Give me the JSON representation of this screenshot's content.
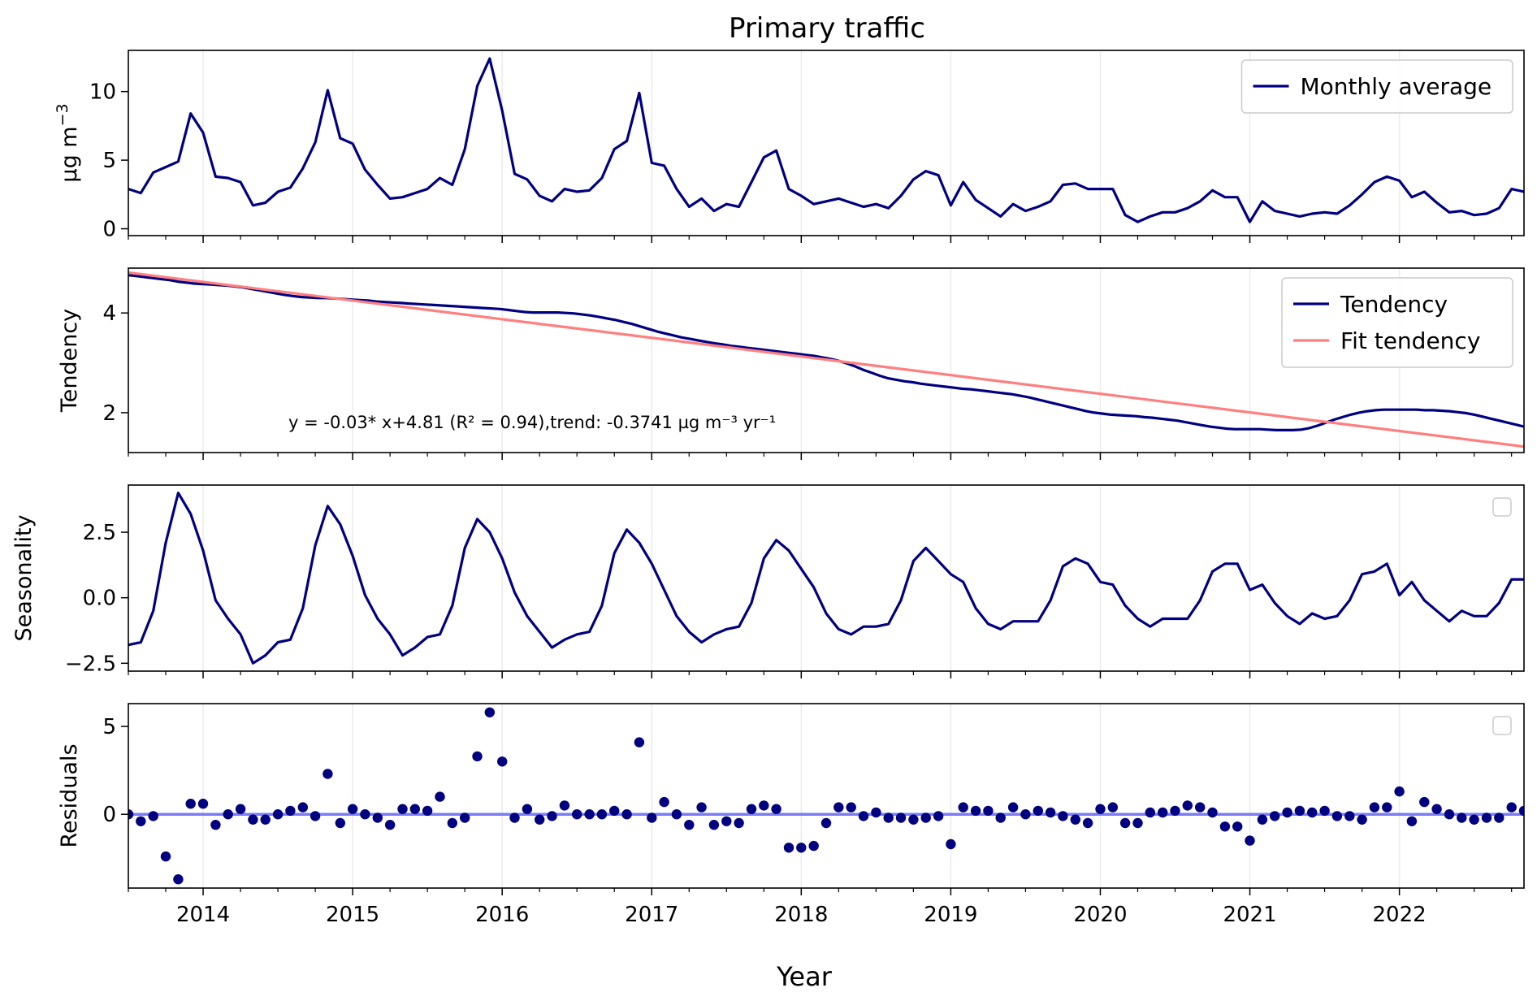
{
  "chart_data": {
    "type": "line",
    "title": "Primary traffic",
    "xlabel": "Year",
    "x_start": "2013-07",
    "xlim": [
      "2013-07",
      "2022-11"
    ],
    "x_ticks": [
      "2014",
      "2015",
      "2016",
      "2017",
      "2018",
      "2019",
      "2020",
      "2021",
      "2022"
    ],
    "panels": [
      {
        "id": "monthly",
        "ylabel": "µg m",
        "ylabel_sup": "−3",
        "ylim": [
          -0.5,
          13
        ],
        "y_ticks": [
          "0",
          "5",
          "10"
        ],
        "legend": "top-right",
        "series": [
          {
            "name": "Monthly average",
            "color": "#000080",
            "values": [
              2.9,
              2.6,
              4.1,
              4.5,
              4.9,
              8.4,
              7.0,
              3.8,
              3.7,
              3.4,
              1.7,
              1.9,
              2.7,
              3.0,
              4.4,
              6.3,
              10.1,
              6.6,
              6.2,
              4.3,
              3.2,
              2.2,
              2.3,
              2.6,
              2.9,
              3.7,
              3.2,
              5.8,
              10.4,
              12.4,
              8.6,
              4.0,
              3.6,
              2.4,
              2.0,
              2.9,
              2.7,
              2.8,
              3.7,
              5.8,
              6.4,
              9.9,
              4.8,
              4.6,
              2.9,
              1.6,
              2.2,
              1.3,
              1.8,
              1.6,
              3.4,
              5.2,
              5.7,
              2.9,
              2.4,
              1.8,
              2.0,
              2.2,
              1.9,
              1.6,
              1.8,
              1.5,
              2.4,
              3.6,
              4.2,
              3.9,
              1.7,
              3.4,
              2.1,
              1.5,
              0.9,
              1.8,
              1.3,
              1.6,
              2.0,
              3.2,
              3.3,
              2.9,
              2.9,
              2.9,
              1.0,
              0.5,
              0.9,
              1.2,
              1.2,
              1.5,
              2.0,
              2.8,
              2.3,
              2.3,
              0.5,
              2.0,
              1.3,
              1.1,
              0.9,
              1.1,
              1.2,
              1.1,
              1.7,
              2.5,
              3.4,
              3.8,
              3.5,
              2.3,
              2.7,
              1.9,
              1.2,
              1.3,
              1.0,
              1.1,
              1.5,
              2.9,
              2.7
            ]
          }
        ]
      },
      {
        "id": "tendency",
        "ylabel": "Tendency",
        "ylim": [
          1.2,
          4.9
        ],
        "y_ticks": [
          "2",
          "4"
        ],
        "legend": "top-right",
        "annotation": "y = -0.03* x+4.81 (R² = 0.94),trend: -0.3741 µg m⁻³ yr⁻¹",
        "series": [
          {
            "name": "Tendency",
            "color": "#000080",
            "values": [
              4.76,
              4.74,
              4.72,
              4.7,
              4.68,
              4.66,
              4.63,
              4.61,
              4.59,
              4.58,
              4.57,
              4.56,
              4.55,
              4.53,
              4.51,
              4.48,
              4.45,
              4.42,
              4.39,
              4.36,
              4.34,
              4.32,
              4.31,
              4.3,
              4.3,
              4.29,
              4.28,
              4.27,
              4.26,
              4.25,
              4.23,
              4.22,
              4.21,
              4.2,
              4.19,
              4.18,
              4.17,
              4.16,
              4.15,
              4.14,
              4.13,
              4.12,
              4.11,
              4.1,
              4.09,
              4.08,
              4.06,
              4.04,
              4.02,
              4.01,
              4.01,
              4.01,
              4.01,
              4.0,
              3.99,
              3.97,
              3.95,
              3.92,
              3.89,
              3.86,
              3.82,
              3.78,
              3.73,
              3.68,
              3.63,
              3.59,
              3.55,
              3.51,
              3.48,
              3.45,
              3.42,
              3.39,
              3.37,
              3.34,
              3.32,
              3.3,
              3.28,
              3.26,
              3.24,
              3.22,
              3.2,
              3.18,
              3.16,
              3.14,
              3.11,
              3.08,
              3.04,
              2.99,
              2.93,
              2.86,
              2.8,
              2.74,
              2.69,
              2.66,
              2.63,
              2.61,
              2.58,
              2.56,
              2.54,
              2.52,
              2.5,
              2.48,
              2.47,
              2.45,
              2.43,
              2.41,
              2.39,
              2.37,
              2.34,
              2.31,
              2.27,
              2.23,
              2.19,
              2.15,
              2.11,
              2.07,
              2.03,
              2.0,
              1.98,
              1.96,
              1.95,
              1.94,
              1.93,
              1.91,
              1.9,
              1.88,
              1.86,
              1.84,
              1.81,
              1.78,
              1.75,
              1.72,
              1.7,
              1.68,
              1.67,
              1.67,
              1.67,
              1.67,
              1.66,
              1.65,
              1.65,
              1.65,
              1.66,
              1.69,
              1.74,
              1.8,
              1.86,
              1.91,
              1.96,
              2.0,
              2.03,
              2.05,
              2.06,
              2.06,
              2.06,
              2.06,
              2.06,
              2.05,
              2.05,
              2.04,
              2.03,
              2.01,
              1.99,
              1.96,
              1.92,
              1.88,
              1.84,
              1.8,
              1.76,
              1.72
            ]
          },
          {
            "name": "Fit tendency",
            "color": "#ff7f7f",
            "start": 4.81,
            "end": 1.32
          }
        ]
      },
      {
        "id": "seasonality",
        "ylabel": "Seasonality",
        "ylim": [
          -2.8,
          4.3
        ],
        "y_ticks": [
          "−2.5",
          "0.0",
          "2.5"
        ],
        "legend": "top-right-empty",
        "series": [
          {
            "name": "",
            "color": "#000080",
            "values": [
              -1.8,
              -1.7,
              -0.5,
              2.1,
              4.0,
              3.2,
              1.8,
              -0.1,
              -0.8,
              -1.4,
              -2.5,
              -2.2,
              -1.7,
              -1.6,
              -0.4,
              2.0,
              3.5,
              2.8,
              1.6,
              0.1,
              -0.8,
              -1.4,
              -2.2,
              -1.9,
              -1.5,
              -1.4,
              -0.3,
              1.9,
              3.0,
              2.5,
              1.5,
              0.2,
              -0.7,
              -1.3,
              -1.9,
              -1.6,
              -1.4,
              -1.3,
              -0.3,
              1.7,
              2.6,
              2.1,
              1.3,
              0.3,
              -0.7,
              -1.3,
              -1.7,
              -1.4,
              -1.2,
              -1.1,
              -0.2,
              1.5,
              2.2,
              1.8,
              1.1,
              0.4,
              -0.6,
              -1.2,
              -1.4,
              -1.1,
              -1.1,
              -1.0,
              -0.1,
              1.4,
              1.9,
              1.4,
              0.9,
              0.6,
              -0.4,
              -1.0,
              -1.2,
              -0.9,
              -0.9,
              -0.9,
              -0.1,
              1.2,
              1.5,
              1.3,
              0.6,
              0.5,
              -0.3,
              -0.8,
              -1.1,
              -0.8,
              -0.8,
              -0.8,
              -0.1,
              1.0,
              1.3,
              1.3,
              0.3,
              0.5,
              -0.2,
              -0.7,
              -1.0,
              -0.6,
              -0.8,
              -0.7,
              -0.1,
              0.9,
              1.0,
              1.3,
              0.1,
              0.6,
              -0.1,
              -0.5,
              -0.9,
              -0.5,
              -0.7,
              -0.7,
              -0.2,
              0.7,
              0.7
            ]
          }
        ]
      },
      {
        "id": "residuals",
        "ylabel": "Residuals",
        "ylim": [
          -4.2,
          6.3
        ],
        "y_ticks": [
          "0",
          "5"
        ],
        "legend": "top-right-empty",
        "zero_line_color": "#7b7bf5",
        "series": [
          {
            "name": "",
            "type": "scatter",
            "color": "#000080",
            "values": [
              0.0,
              -0.4,
              -0.1,
              -2.4,
              -3.7,
              0.6,
              0.6,
              -0.6,
              0.0,
              0.3,
              -0.3,
              -0.3,
              0.0,
              0.2,
              0.4,
              -0.1,
              2.3,
              -0.5,
              0.3,
              0.0,
              -0.2,
              -0.6,
              0.3,
              0.3,
              0.2,
              1.0,
              -0.5,
              -0.2,
              3.3,
              5.8,
              3.0,
              -0.2,
              0.3,
              -0.3,
              -0.1,
              0.5,
              0.0,
              0.0,
              0.0,
              0.2,
              0.0,
              4.1,
              -0.2,
              0.7,
              0.0,
              -0.6,
              0.4,
              -0.6,
              -0.4,
              -0.5,
              0.3,
              0.5,
              0.3,
              -1.9,
              -1.9,
              -1.8,
              -0.5,
              0.4,
              0.4,
              -0.1,
              0.1,
              -0.2,
              -0.2,
              -0.3,
              -0.2,
              -0.1,
              -1.7,
              0.4,
              0.2,
              0.2,
              -0.2,
              0.4,
              0.0,
              0.2,
              0.1,
              -0.1,
              -0.3,
              -0.5,
              0.3,
              0.4,
              -0.5,
              -0.5,
              0.1,
              0.1,
              0.2,
              0.5,
              0.4,
              0.1,
              -0.7,
              -0.7,
              -1.5,
              -0.3,
              -0.1,
              0.1,
              0.2,
              0.1,
              0.2,
              -0.1,
              -0.1,
              -0.3,
              0.4,
              0.4,
              1.3,
              -0.4,
              0.7,
              0.3,
              0.0,
              -0.2,
              -0.3,
              -0.2,
              -0.2,
              0.4,
              0.2
            ]
          }
        ]
      }
    ]
  }
}
